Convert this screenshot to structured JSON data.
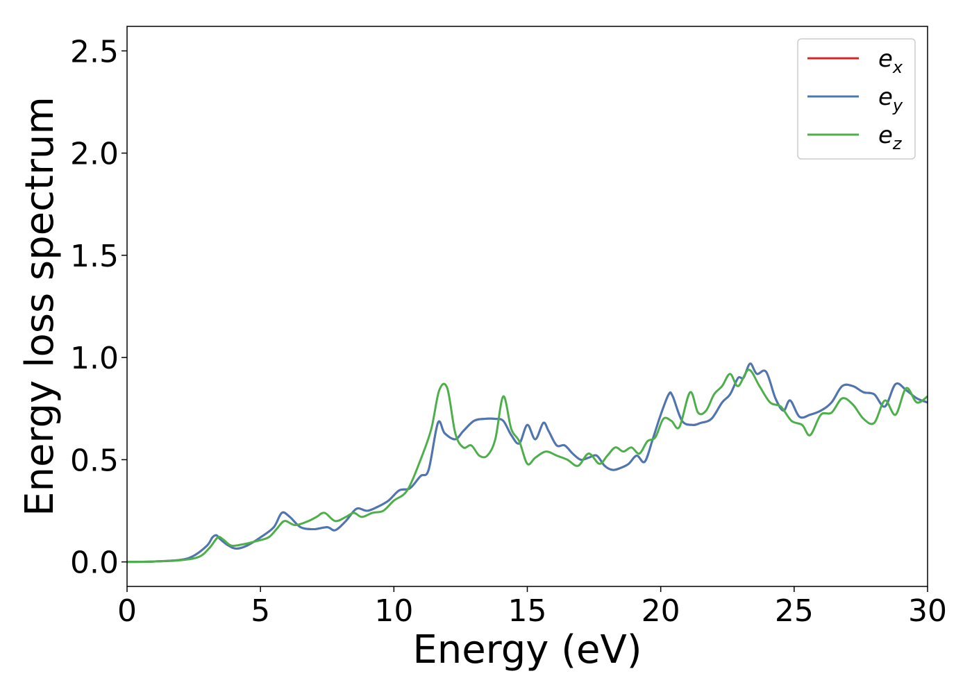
{
  "chart_data": {
    "type": "line",
    "xlabel": "Energy (eV)",
    "ylabel": "Energy loss spectrum",
    "xlim": [
      0,
      30
    ],
    "ylim": [
      -0.12,
      2.62
    ],
    "xticks": [
      0,
      5,
      10,
      15,
      20,
      25,
      30
    ],
    "yticks": [
      0.0,
      0.5,
      1.0,
      1.5,
      2.0,
      2.5
    ],
    "xtick_labels": [
      "0",
      "5",
      "10",
      "15",
      "20",
      "25",
      "30"
    ],
    "ytick_labels": [
      "0.0",
      "0.5",
      "1.0",
      "1.5",
      "2.0",
      "2.5"
    ],
    "grid": false,
    "legend_position": "top-right",
    "series": [
      {
        "name": "e_x",
        "label_base": "e",
        "label_sub": "x",
        "color": "#d62728",
        "x": [
          0,
          1,
          2,
          2.5,
          3,
          3.2,
          3.35,
          3.5,
          3.8,
          4.1,
          4.5,
          5,
          5.5,
          5.8,
          6.1,
          6.5,
          7,
          7.5,
          7.8,
          8.2,
          8.6,
          9,
          9.4,
          9.8,
          10.2,
          10.6,
          11,
          11.3,
          11.65,
          11.9,
          12.3,
          12.6,
          13,
          13.4,
          13.8,
          14.1,
          14.4,
          14.7,
          15,
          15.3,
          15.6,
          15.8,
          16.1,
          16.4,
          16.7,
          17,
          17.3,
          17.6,
          17.9,
          18.2,
          18.5,
          18.8,
          19.1,
          19.4,
          19.7,
          20,
          20.3,
          20.45,
          20.8,
          21.2,
          21.5,
          21.9,
          22.3,
          22.6,
          22.9,
          23.1,
          23.35,
          23.6,
          23.95,
          24.3,
          24.6,
          24.85,
          25.2,
          25.6,
          26,
          26.4,
          26.8,
          27.2,
          27.6,
          28,
          28.4,
          28.8,
          29.2,
          29.6,
          30
        ],
        "y": [
          0.0,
          0.002,
          0.01,
          0.03,
          0.08,
          0.12,
          0.13,
          0.11,
          0.08,
          0.065,
          0.08,
          0.12,
          0.17,
          0.24,
          0.22,
          0.17,
          0.16,
          0.17,
          0.155,
          0.2,
          0.26,
          0.25,
          0.27,
          0.3,
          0.35,
          0.36,
          0.42,
          0.45,
          0.68,
          0.63,
          0.6,
          0.64,
          0.69,
          0.7,
          0.7,
          0.69,
          0.62,
          0.58,
          0.67,
          0.6,
          0.68,
          0.64,
          0.57,
          0.57,
          0.53,
          0.5,
          0.51,
          0.52,
          0.47,
          0.45,
          0.46,
          0.48,
          0.52,
          0.49,
          0.6,
          0.72,
          0.82,
          0.81,
          0.69,
          0.67,
          0.68,
          0.7,
          0.78,
          0.82,
          0.9,
          0.9,
          0.97,
          0.92,
          0.93,
          0.8,
          0.74,
          0.79,
          0.71,
          0.72,
          0.74,
          0.78,
          0.86,
          0.86,
          0.83,
          0.82,
          0.76,
          0.87,
          0.84,
          0.8,
          0.78
        ]
      },
      {
        "name": "e_y",
        "label_base": "e",
        "label_sub": "y",
        "color": "#4a78b4",
        "x": [
          0,
          1,
          2,
          2.5,
          3,
          3.2,
          3.35,
          3.5,
          3.8,
          4.1,
          4.5,
          5,
          5.5,
          5.8,
          6.1,
          6.5,
          7,
          7.5,
          7.8,
          8.2,
          8.6,
          9,
          9.4,
          9.8,
          10.2,
          10.6,
          11,
          11.3,
          11.65,
          11.9,
          12.3,
          12.6,
          13,
          13.4,
          13.8,
          14.1,
          14.4,
          14.7,
          15,
          15.3,
          15.6,
          15.8,
          16.1,
          16.4,
          16.7,
          17,
          17.3,
          17.6,
          17.9,
          18.2,
          18.5,
          18.8,
          19.1,
          19.4,
          19.7,
          20,
          20.3,
          20.45,
          20.8,
          21.2,
          21.5,
          21.9,
          22.3,
          22.6,
          22.9,
          23.1,
          23.35,
          23.6,
          23.95,
          24.3,
          24.6,
          24.85,
          25.2,
          25.6,
          26,
          26.4,
          26.8,
          27.2,
          27.6,
          28,
          28.4,
          28.8,
          29.2,
          29.6,
          30
        ],
        "y": [
          0.0,
          0.002,
          0.01,
          0.03,
          0.08,
          0.12,
          0.13,
          0.11,
          0.08,
          0.065,
          0.08,
          0.12,
          0.17,
          0.24,
          0.22,
          0.17,
          0.16,
          0.17,
          0.155,
          0.2,
          0.26,
          0.25,
          0.27,
          0.3,
          0.35,
          0.36,
          0.42,
          0.45,
          0.68,
          0.63,
          0.6,
          0.64,
          0.69,
          0.7,
          0.7,
          0.69,
          0.62,
          0.58,
          0.67,
          0.6,
          0.68,
          0.64,
          0.57,
          0.57,
          0.53,
          0.5,
          0.51,
          0.52,
          0.47,
          0.45,
          0.46,
          0.48,
          0.52,
          0.49,
          0.6,
          0.72,
          0.82,
          0.81,
          0.69,
          0.67,
          0.68,
          0.7,
          0.78,
          0.82,
          0.9,
          0.9,
          0.97,
          0.92,
          0.93,
          0.8,
          0.74,
          0.79,
          0.71,
          0.72,
          0.74,
          0.78,
          0.86,
          0.86,
          0.83,
          0.82,
          0.76,
          0.87,
          0.84,
          0.8,
          0.78
        ]
      },
      {
        "name": "e_z",
        "label_base": "e",
        "label_sub": "z",
        "color": "#4daf4a",
        "x": [
          0,
          1,
          2,
          2.7,
          3.1,
          3.4,
          3.6,
          3.9,
          4.3,
          4.8,
          5.3,
          5.6,
          5.9,
          6.3,
          6.8,
          7.1,
          7.4,
          7.8,
          8.2,
          8.5,
          8.8,
          9.2,
          9.6,
          10,
          10.5,
          11,
          11.4,
          11.7,
          12,
          12.3,
          12.6,
          12.9,
          13.2,
          13.5,
          13.8,
          14.1,
          14.4,
          14.7,
          15,
          15.3,
          15.7,
          16.1,
          16.5,
          16.9,
          17.3,
          17.7,
          18,
          18.3,
          18.6,
          18.9,
          19.2,
          19.5,
          19.8,
          20.1,
          20.4,
          20.7,
          21.1,
          21.4,
          21.7,
          22,
          22.3,
          22.6,
          22.9,
          23.3,
          23.7,
          24.1,
          24.5,
          24.9,
          25.3,
          25.6,
          26,
          26.4,
          26.8,
          27.2,
          27.6,
          28,
          28.4,
          28.8,
          29.2,
          29.6,
          30
        ],
        "y": [
          0.0,
          0.002,
          0.008,
          0.025,
          0.07,
          0.12,
          0.11,
          0.08,
          0.085,
          0.1,
          0.12,
          0.16,
          0.2,
          0.18,
          0.2,
          0.22,
          0.24,
          0.2,
          0.22,
          0.24,
          0.22,
          0.24,
          0.25,
          0.3,
          0.35,
          0.5,
          0.65,
          0.84,
          0.85,
          0.63,
          0.56,
          0.57,
          0.52,
          0.52,
          0.6,
          0.81,
          0.65,
          0.59,
          0.48,
          0.51,
          0.54,
          0.52,
          0.5,
          0.47,
          0.53,
          0.48,
          0.52,
          0.56,
          0.54,
          0.56,
          0.53,
          0.59,
          0.61,
          0.7,
          0.69,
          0.66,
          0.83,
          0.73,
          0.74,
          0.82,
          0.86,
          0.92,
          0.86,
          0.94,
          0.86,
          0.78,
          0.76,
          0.69,
          0.67,
          0.62,
          0.72,
          0.73,
          0.8,
          0.77,
          0.7,
          0.68,
          0.79,
          0.72,
          0.85,
          0.78,
          0.81
        ]
      }
    ]
  }
}
